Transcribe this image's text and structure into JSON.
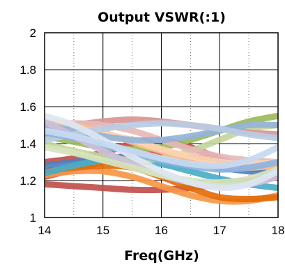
{
  "chart_data": {
    "type": "line",
    "title": "Output VSWR(:1)",
    "xlabel": "Freq(GHz)",
    "ylabel": "",
    "xlim": [
      14,
      18
    ],
    "ylim": [
      1,
      2
    ],
    "x_ticks": [
      "14",
      "15",
      "16",
      "17",
      "18"
    ],
    "y_ticks": [
      "1",
      "1.2",
      "1.4",
      "1.6",
      "1.8",
      "2"
    ],
    "grid": {
      "major_vertical": "solid",
      "minor_vertical": "dotted",
      "horizontal": "solid"
    },
    "x": [
      14,
      14.5,
      15,
      15.5,
      16,
      16.5,
      17,
      17.5,
      18
    ],
    "series": [
      {
        "color": "#c0504d",
        "values": [
          1.18,
          1.17,
          1.16,
          1.15,
          1.15,
          1.16,
          1.18,
          1.2,
          1.22
        ]
      },
      {
        "color": "#c0504d",
        "values": [
          1.3,
          1.32,
          1.35,
          1.4,
          1.42,
          1.38,
          1.32,
          1.27,
          1.24
        ]
      },
      {
        "color": "#d9534f",
        "values": [
          1.22,
          1.26,
          1.3,
          1.34,
          1.35,
          1.33,
          1.3,
          1.28,
          1.28
        ]
      },
      {
        "color": "#f79646",
        "values": [
          1.23,
          1.25,
          1.25,
          1.22,
          1.17,
          1.12,
          1.09,
          1.09,
          1.12
        ]
      },
      {
        "color": "#e46c0a",
        "values": [
          1.25,
          1.27,
          1.28,
          1.27,
          1.22,
          1.16,
          1.11,
          1.1,
          1.11
        ]
      },
      {
        "color": "#4f81bd",
        "values": [
          1.28,
          1.3,
          1.32,
          1.33,
          1.32,
          1.3,
          1.27,
          1.25,
          1.24
        ]
      },
      {
        "color": "#4bacc6",
        "values": [
          1.24,
          1.28,
          1.31,
          1.31,
          1.29,
          1.25,
          1.21,
          1.18,
          1.16
        ]
      },
      {
        "color": "#9bbb59",
        "values": [
          1.44,
          1.41,
          1.38,
          1.37,
          1.38,
          1.42,
          1.47,
          1.52,
          1.55
        ]
      },
      {
        "color": "#c3d69b",
        "values": [
          1.4,
          1.36,
          1.33,
          1.31,
          1.32,
          1.36,
          1.42,
          1.48,
          1.5
        ]
      },
      {
        "color": "#d99694",
        "values": [
          1.48,
          1.5,
          1.52,
          1.53,
          1.52,
          1.5,
          1.48,
          1.46,
          1.45
        ]
      },
      {
        "color": "#e6b9b8",
        "values": [
          1.5,
          1.51,
          1.5,
          1.47,
          1.42,
          1.37,
          1.33,
          1.31,
          1.3
        ]
      },
      {
        "color": "#fac090",
        "values": [
          1.52,
          1.5,
          1.46,
          1.41,
          1.36,
          1.31,
          1.28,
          1.27,
          1.28
        ]
      },
      {
        "color": "#fcd5b4",
        "values": [
          1.47,
          1.47,
          1.45,
          1.42,
          1.37,
          1.33,
          1.3,
          1.29,
          1.3
        ]
      },
      {
        "color": "#95b3d7",
        "values": [
          1.5,
          1.47,
          1.44,
          1.42,
          1.42,
          1.44,
          1.47,
          1.5,
          1.5
        ]
      },
      {
        "color": "#b8cce4",
        "values": [
          1.42,
          1.45,
          1.48,
          1.5,
          1.51,
          1.5,
          1.48,
          1.45,
          1.43
        ]
      },
      {
        "color": "#8db3e2",
        "values": [
          1.46,
          1.43,
          1.39,
          1.35,
          1.31,
          1.28,
          1.26,
          1.27,
          1.3
        ]
      },
      {
        "color": "#ccc0da",
        "values": [
          1.52,
          1.44,
          1.36,
          1.29,
          1.23,
          1.19,
          1.17,
          1.18,
          1.22
        ]
      },
      {
        "color": "#d7e4bd",
        "values": [
          1.38,
          1.35,
          1.31,
          1.27,
          1.23,
          1.2,
          1.19,
          1.21,
          1.26
        ]
      },
      {
        "color": "#dce6f2",
        "values": [
          1.55,
          1.5,
          1.42,
          1.33,
          1.25,
          1.19,
          1.16,
          1.18,
          1.25
        ]
      },
      {
        "color": "#c6d9f1",
        "values": [
          1.47,
          1.44,
          1.4,
          1.36,
          1.32,
          1.29,
          1.28,
          1.31,
          1.38
        ]
      }
    ]
  }
}
